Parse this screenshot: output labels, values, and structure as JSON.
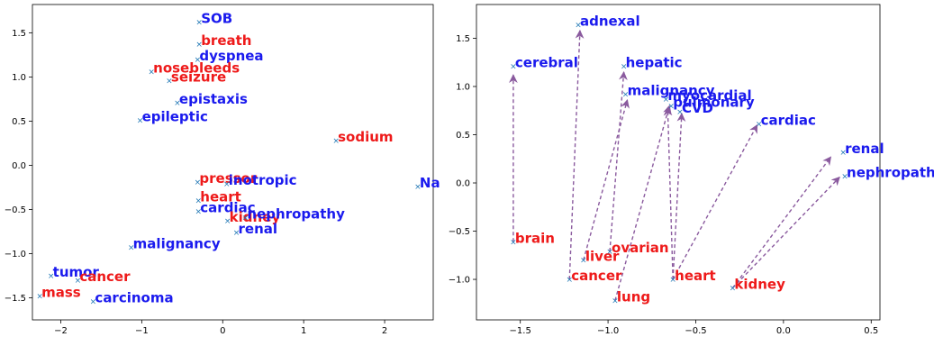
{
  "colors": {
    "group_a": "#1a1aee",
    "group_b": "#ee1a1a",
    "marker": "#1f77b4",
    "arrow": "#8a5a9e"
  },
  "chart_data": [
    {
      "type": "scatter",
      "title": "",
      "xlabel": "",
      "ylabel": "",
      "xlim": [
        -2.35,
        2.6
      ],
      "ylim": [
        -1.75,
        1.82
      ],
      "grid": false,
      "legend": "none",
      "xticks": [
        {
          "v": -2,
          "label": "−2"
        },
        {
          "v": -1,
          "label": "−1"
        },
        {
          "v": 0,
          "label": "0"
        },
        {
          "v": 1,
          "label": "1"
        },
        {
          "v": 2,
          "label": "2"
        }
      ],
      "yticks": [
        {
          "v": 1.5,
          "label": "1.5"
        },
        {
          "v": 1.0,
          "label": "1.0"
        },
        {
          "v": 0.5,
          "label": "0.5"
        },
        {
          "v": 0.0,
          "label": "0.0"
        },
        {
          "v": -0.5,
          "label": "−0.5"
        },
        {
          "v": -1.0,
          "label": "−1.0"
        },
        {
          "v": -1.5,
          "label": "−1.5"
        }
      ],
      "points": [
        {
          "label": "SOB",
          "x": -0.29,
          "y": 1.62,
          "group": "a"
        },
        {
          "label": "breath",
          "x": -0.29,
          "y": 1.37,
          "group": "b"
        },
        {
          "label": "dyspnea",
          "x": -0.31,
          "y": 1.2,
          "group": "a"
        },
        {
          "label": "nosebleeds",
          "x": -0.88,
          "y": 1.06,
          "group": "b"
        },
        {
          "label": "seizure",
          "x": -0.66,
          "y": 0.96,
          "group": "b"
        },
        {
          "label": "epistaxis",
          "x": -0.56,
          "y": 0.71,
          "group": "a"
        },
        {
          "label": "epileptic",
          "x": -1.02,
          "y": 0.51,
          "group": "a"
        },
        {
          "label": "sodium",
          "x": 1.4,
          "y": 0.28,
          "group": "b"
        },
        {
          "label": "pressor",
          "x": -0.31,
          "y": -0.19,
          "group": "b"
        },
        {
          "label": "inotropic",
          "x": 0.05,
          "y": -0.21,
          "group": "a"
        },
        {
          "label": "Na",
          "x": 2.41,
          "y": -0.24,
          "group": "a"
        },
        {
          "label": "heart",
          "x": -0.3,
          "y": -0.4,
          "group": "b"
        },
        {
          "label": "cardiac",
          "x": -0.3,
          "y": -0.52,
          "group": "a"
        },
        {
          "label": "kidney",
          "x": 0.06,
          "y": -0.63,
          "group": "b"
        },
        {
          "label": "nephropathy",
          "x": 0.28,
          "y": -0.59,
          "group": "a"
        },
        {
          "label": "renal",
          "x": 0.17,
          "y": -0.76,
          "group": "a"
        },
        {
          "label": "malignancy",
          "x": -1.13,
          "y": -0.93,
          "group": "a"
        },
        {
          "label": "tumor",
          "x": -2.12,
          "y": -1.25,
          "group": "a"
        },
        {
          "label": "cancer",
          "x": -1.79,
          "y": -1.3,
          "group": "b"
        },
        {
          "label": "mass",
          "x": -2.26,
          "y": -1.48,
          "group": "b"
        },
        {
          "label": "carcinoma",
          "x": -1.6,
          "y": -1.54,
          "group": "a"
        }
      ]
    },
    {
      "type": "scatter",
      "title": "",
      "xlabel": "",
      "ylabel": "",
      "xlim": [
        -1.75,
        0.55
      ],
      "ylim": [
        -1.42,
        1.85
      ],
      "grid": false,
      "legend": "none",
      "xticks": [
        {
          "v": -1.5,
          "label": "−1.5"
        },
        {
          "v": -1.0,
          "label": "−1.0"
        },
        {
          "v": -0.5,
          "label": "−0.5"
        },
        {
          "v": 0.0,
          "label": "0.0"
        },
        {
          "v": 0.5,
          "label": "0.5"
        }
      ],
      "yticks": [
        {
          "v": 1.5,
          "label": "1.5"
        },
        {
          "v": 1.0,
          "label": "1.0"
        },
        {
          "v": 0.5,
          "label": "0.5"
        },
        {
          "v": 0.0,
          "label": "0.0"
        },
        {
          "v": -0.5,
          "label": "−0.5"
        },
        {
          "v": -1.0,
          "label": "−1.0"
        }
      ],
      "points": [
        {
          "label": "adnexal",
          "x": -1.17,
          "y": 1.64,
          "group": "a"
        },
        {
          "label": "cerebral",
          "x": -1.54,
          "y": 1.21,
          "group": "a"
        },
        {
          "label": "hepatic",
          "x": -0.91,
          "y": 1.21,
          "group": "a"
        },
        {
          "label": "malignancy",
          "x": -0.9,
          "y": 0.92,
          "group": "a"
        },
        {
          "label": "myocardial",
          "x": -0.67,
          "y": 0.87,
          "group": "a"
        },
        {
          "label": "pulmonary",
          "x": -0.64,
          "y": 0.8,
          "group": "a"
        },
        {
          "label": "CVD",
          "x": -0.59,
          "y": 0.74,
          "group": "a"
        },
        {
          "label": "cardiac",
          "x": -0.14,
          "y": 0.61,
          "group": "a"
        },
        {
          "label": "renal",
          "x": 0.34,
          "y": 0.32,
          "group": "a"
        },
        {
          "label": "nephropathy",
          "x": 0.35,
          "y": 0.07,
          "group": "a"
        },
        {
          "label": "brain",
          "x": -1.54,
          "y": -0.61,
          "group": "b"
        },
        {
          "label": "liver",
          "x": -1.14,
          "y": -0.8,
          "group": "b"
        },
        {
          "label": "ovarian",
          "x": -0.99,
          "y": -0.71,
          "group": "b"
        },
        {
          "label": "cancer",
          "x": -1.22,
          "y": -1.0,
          "group": "b"
        },
        {
          "label": "heart",
          "x": -0.63,
          "y": -1.0,
          "group": "b"
        },
        {
          "label": "kidney",
          "x": -0.29,
          "y": -1.09,
          "group": "b"
        },
        {
          "label": "lung",
          "x": -0.96,
          "y": -1.22,
          "group": "b"
        }
      ],
      "arrows": [
        {
          "from": [
            -1.54,
            -0.61
          ],
          "to": [
            -1.54,
            1.12
          ]
        },
        {
          "from": [
            -1.22,
            -1.0
          ],
          "to": [
            -1.16,
            1.58
          ]
        },
        {
          "from": [
            -0.99,
            -0.71
          ],
          "to": [
            -0.91,
            1.15
          ]
        },
        {
          "from": [
            -1.14,
            -0.8
          ],
          "to": [
            -0.89,
            0.86
          ]
        },
        {
          "from": [
            -0.96,
            -1.22
          ],
          "to": [
            -0.65,
            0.8
          ]
        },
        {
          "from": [
            -0.63,
            -1.0
          ],
          "to": [
            -0.66,
            0.78
          ]
        },
        {
          "from": [
            -0.63,
            -1.0
          ],
          "to": [
            -0.58,
            0.72
          ]
        },
        {
          "from": [
            -0.63,
            -1.0
          ],
          "to": [
            -0.15,
            0.6
          ]
        },
        {
          "from": [
            -0.29,
            -1.09
          ],
          "to": [
            0.27,
            0.27
          ]
        },
        {
          "from": [
            -0.29,
            -1.09
          ],
          "to": [
            0.32,
            0.06
          ]
        }
      ]
    }
  ]
}
